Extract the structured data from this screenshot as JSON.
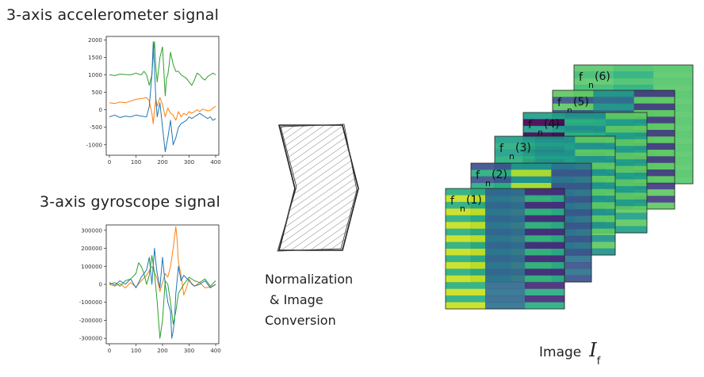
{
  "accelerometer": {
    "title": "3-axis accelerometer signal",
    "chart_data": {
      "type": "line",
      "xlim": [
        0,
        400
      ],
      "ylim": [
        -1300,
        2100
      ],
      "x_ticks": [
        "0",
        "100",
        "200",
        "300",
        "400"
      ],
      "y_ticks": [
        "2000",
        "1500",
        "1000",
        "500",
        "0",
        "-500",
        "-1000"
      ],
      "series": [
        {
          "color": "#2ca02c",
          "x": [
            0,
            20,
            40,
            60,
            80,
            100,
            110,
            120,
            130,
            140,
            150,
            160,
            165,
            170,
            175,
            180,
            190,
            200,
            210,
            215,
            220,
            225,
            230,
            240,
            250,
            260,
            270,
            280,
            290,
            300,
            310,
            320,
            330,
            340,
            350,
            360,
            370,
            380,
            390,
            400
          ],
          "y": [
            1000,
            980,
            1020,
            1010,
            1000,
            1050,
            1020,
            1000,
            1100,
            1000,
            700,
            1000,
            1600,
            1950,
            1200,
            800,
            1500,
            1800,
            400,
            900,
            1000,
            1300,
            1650,
            1300,
            1100,
            1100,
            1000,
            950,
            900,
            800,
            700,
            850,
            1050,
            1000,
            900,
            850,
            950,
            1000,
            1050,
            1000
          ]
        },
        {
          "color": "#ff7f0e",
          "x": [
            0,
            20,
            40,
            60,
            80,
            100,
            120,
            140,
            150,
            160,
            165,
            170,
            175,
            180,
            190,
            200,
            210,
            220,
            230,
            240,
            250,
            260,
            270,
            280,
            290,
            300,
            310,
            320,
            330,
            340,
            350,
            360,
            370,
            380,
            390,
            400
          ],
          "y": [
            200,
            180,
            220,
            200,
            250,
            300,
            320,
            350,
            250,
            -100,
            -400,
            0,
            300,
            100,
            350,
            150,
            -200,
            50,
            -100,
            -150,
            -300,
            -50,
            -200,
            -100,
            -150,
            -50,
            -100,
            -50,
            0,
            -50,
            20,
            0,
            -30,
            -20,
            50,
            100
          ]
        },
        {
          "color": "#1f77b4",
          "x": [
            0,
            20,
            40,
            60,
            80,
            100,
            120,
            140,
            150,
            160,
            165,
            170,
            175,
            180,
            190,
            200,
            210,
            220,
            230,
            240,
            250,
            260,
            270,
            280,
            290,
            300,
            310,
            320,
            330,
            340,
            350,
            360,
            370,
            380,
            390,
            400
          ],
          "y": [
            -200,
            -150,
            -220,
            -180,
            -200,
            -150,
            -180,
            -200,
            100,
            1000,
            1950,
            1200,
            300,
            -200,
            200,
            -500,
            -1200,
            -800,
            -300,
            -1000,
            -800,
            -500,
            -400,
            -350,
            -300,
            -200,
            -250,
            -200,
            -150,
            -100,
            -150,
            -200,
            -250,
            -200,
            -300,
            -250
          ]
        }
      ]
    }
  },
  "gyroscope": {
    "title": "3-axis gyroscope signal",
    "chart_data": {
      "type": "line",
      "xlim": [
        0,
        400
      ],
      "ylim": [
        -330000,
        330000
      ],
      "x_ticks": [
        "0",
        "100",
        "200",
        "300",
        "400"
      ],
      "y_ticks": [
        "300000",
        "200000",
        "100000",
        "0",
        "-100000",
        "-200000",
        "-300000"
      ],
      "series": [
        {
          "color": "#ff7f0e",
          "x": [
            0,
            20,
            40,
            60,
            80,
            100,
            120,
            140,
            160,
            180,
            190,
            200,
            210,
            220,
            230,
            240,
            250,
            255,
            260,
            270,
            280,
            290,
            300,
            310,
            320,
            340,
            360,
            380,
            400
          ],
          "y": [
            0,
            -10000,
            5000,
            -20000,
            10000,
            -15000,
            20000,
            50000,
            100000,
            30000,
            -40000,
            10000,
            60000,
            40000,
            100000,
            200000,
            320000,
            250000,
            120000,
            50000,
            -60000,
            -20000,
            30000,
            0,
            -10000,
            10000,
            -20000,
            -15000,
            0
          ]
        },
        {
          "color": "#1f77b4",
          "x": [
            0,
            20,
            40,
            60,
            80,
            100,
            120,
            140,
            150,
            160,
            170,
            175,
            180,
            190,
            200,
            210,
            220,
            230,
            235,
            240,
            245,
            250,
            260,
            270,
            280,
            300,
            320,
            340,
            360,
            380,
            400
          ],
          "y": [
            10000,
            -5000,
            20000,
            0,
            30000,
            -20000,
            40000,
            80000,
            150000,
            0,
            200000,
            120000,
            60000,
            -20000,
            150000,
            0,
            -100000,
            -150000,
            -300000,
            -260000,
            -200000,
            -50000,
            100000,
            20000,
            50000,
            20000,
            -10000,
            0,
            20000,
            -20000,
            0
          ]
        },
        {
          "color": "#2ca02c",
          "x": [
            0,
            20,
            40,
            60,
            80,
            100,
            110,
            120,
            130,
            140,
            150,
            160,
            170,
            180,
            190,
            200,
            210,
            220,
            230,
            240,
            250,
            260,
            280,
            300,
            320,
            340,
            360,
            380,
            400
          ],
          "y": [
            0,
            10000,
            -10000,
            20000,
            30000,
            60000,
            120000,
            100000,
            60000,
            0,
            50000,
            160000,
            60000,
            -100000,
            -300000,
            -200000,
            20000,
            0,
            -100000,
            -220000,
            -150000,
            -50000,
            0,
            40000,
            20000,
            10000,
            30000,
            -10000,
            20000
          ]
        }
      ]
    }
  },
  "process": {
    "lines": [
      "Normalization",
      "& Image",
      "Conversion"
    ]
  },
  "frames": [
    {
      "label": "f",
      "sub": "n",
      "index": "(6)",
      "palette": [
        "#5bc86e",
        "#3fbc73",
        "#35b779",
        "#4ac16d",
        "#2ab07f",
        "#7ad151",
        "#52c569"
      ]
    },
    {
      "label": "f",
      "sub": "n",
      "index": "(5)",
      "palette": [
        "#3b528b",
        "#2c728e",
        "#21918c",
        "#31688e",
        "#28ae80",
        "#443983",
        "#5ec962"
      ]
    },
    {
      "label": "f",
      "sub": "n",
      "index": "(4)",
      "palette": [
        "#2c728e",
        "#21918c",
        "#28ae80",
        "#3b528b",
        "#5ec962",
        "#1f9e89",
        "#440154"
      ]
    },
    {
      "label": "f",
      "sub": "n",
      "index": "(3)",
      "palette": [
        "#21918c",
        "#28ae80",
        "#2c728e",
        "#5ec962",
        "#1f9e89",
        "#3b528b",
        "#fde725"
      ]
    },
    {
      "label": "f",
      "sub": "n",
      "index": "(2)",
      "palette": [
        "#28ae80",
        "#5ec962",
        "#21918c",
        "#b5de2b",
        "#7ad151",
        "#2c728e",
        "#3b528b"
      ]
    },
    {
      "label": "f",
      "sub": "n",
      "index": "(1)",
      "palette": [
        "#3b528b",
        "#31688e",
        "#2c728e",
        "#21918c",
        "#482878",
        "#28ae80",
        "#c8e020"
      ]
    }
  ],
  "image_label": {
    "text": "Image",
    "symbol": "I",
    "sub": "f"
  }
}
